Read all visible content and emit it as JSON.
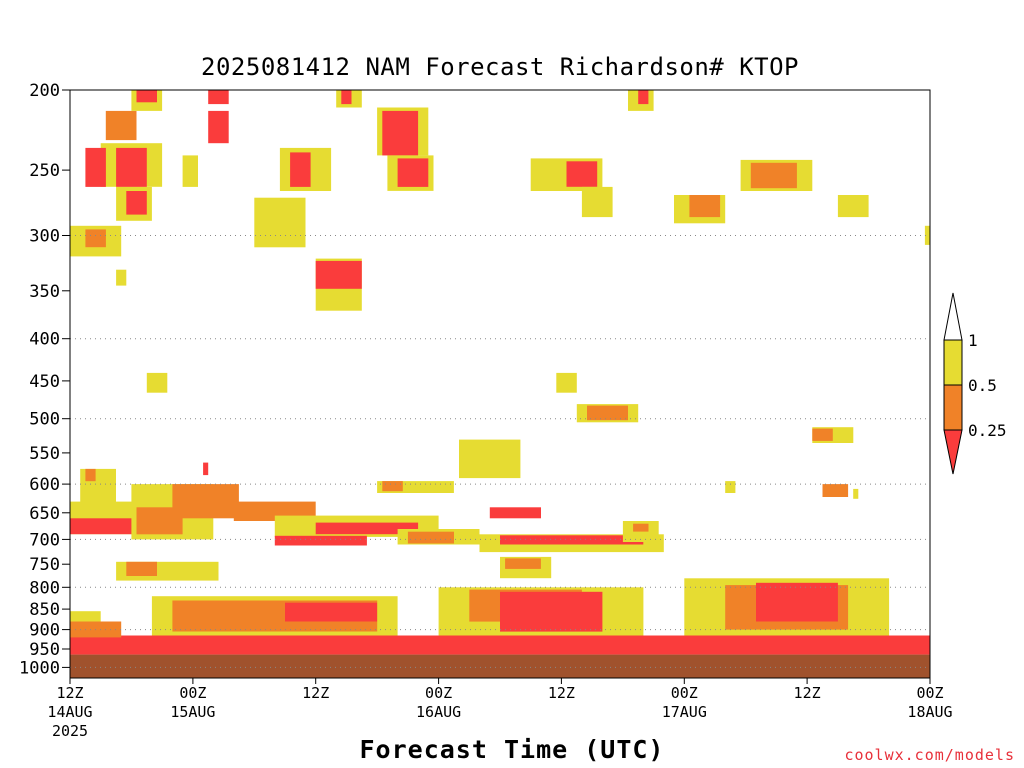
{
  "chart_data": {
    "type": "heatmap",
    "title": "2025081412 NAM Forecast Richardson# KTOP",
    "xlabel": "Forecast Time (UTC)",
    "ylabel": "",
    "credit": "coolwx.com/models",
    "y_scale": "log-pressure (inverted)",
    "ylim": [
      1030,
      200
    ],
    "y_ticks": [
      200,
      250,
      300,
      350,
      400,
      450,
      500,
      550,
      600,
      650,
      700,
      750,
      800,
      850,
      900,
      950,
      1000
    ],
    "grid_levels": [
      300,
      400,
      500,
      600,
      700,
      800,
      900,
      1000
    ],
    "x_range_hours": [
      0,
      84
    ],
    "x_ticks": [
      {
        "hour": 0,
        "line1": "12Z",
        "line2": "14AUG",
        "line3": "2025"
      },
      {
        "hour": 12,
        "line1": "00Z",
        "line2": "15AUG",
        "line3": ""
      },
      {
        "hour": 24,
        "line1": "12Z",
        "line2": "",
        "line3": ""
      },
      {
        "hour": 36,
        "line1": "00Z",
        "line2": "16AUG",
        "line3": ""
      },
      {
        "hour": 48,
        "line1": "12Z",
        "line2": "",
        "line3": ""
      },
      {
        "hour": 60,
        "line1": "00Z",
        "line2": "17AUG",
        "line3": ""
      },
      {
        "hour": 72,
        "line1": "12Z",
        "line2": "",
        "line3": ""
      },
      {
        "hour": 84,
        "line1": "00Z",
        "line2": "18AUG",
        "line3": ""
      }
    ],
    "legend": {
      "placement": "right",
      "bins": [
        {
          "label": "",
          "range": "> 1",
          "color": "#ffffff"
        },
        {
          "label": "1",
          "range": "0.5 - 1",
          "color": "#e6dc32"
        },
        {
          "label": "0.5",
          "range": "0.25 - 0.5",
          "color": "#f08228"
        },
        {
          "label": "0.25",
          "range": "< 0.25",
          "color": "#fa3c3c"
        }
      ]
    },
    "colors": {
      "low": "#fa3c3c",
      "mid": "#f08228",
      "high": "#e6dc32",
      "ground": "#a0522d"
    },
    "ground_top_hpa": 965,
    "regions": [
      {
        "bin": "high",
        "t0": 0,
        "t1": 5,
        "p0": 292,
        "p1": 318
      },
      {
        "bin": "mid",
        "t0": 1.5,
        "t1": 3.5,
        "p0": 295,
        "p1": 310
      },
      {
        "bin": "high",
        "t0": 4.5,
        "t1": 5.5,
        "p0": 330,
        "p1": 345
      },
      {
        "bin": "high",
        "t0": 3,
        "t1": 9,
        "p0": 232,
        "p1": 262
      },
      {
        "bin": "low",
        "t0": 1.5,
        "t1": 3.5,
        "p0": 235,
        "p1": 262
      },
      {
        "bin": "low",
        "t0": 4.5,
        "t1": 7.5,
        "p0": 235,
        "p1": 262
      },
      {
        "bin": "mid",
        "t0": 3.5,
        "t1": 6.5,
        "p0": 212,
        "p1": 230
      },
      {
        "bin": "high",
        "t0": 6,
        "t1": 9,
        "p0": 198,
        "p1": 212
      },
      {
        "bin": "low",
        "t0": 6.5,
        "t1": 8.5,
        "p0": 198,
        "p1": 207
      },
      {
        "bin": "high",
        "t0": 4.5,
        "t1": 8,
        "p0": 262,
        "p1": 288
      },
      {
        "bin": "low",
        "t0": 5.5,
        "t1": 7.5,
        "p0": 265,
        "p1": 283
      },
      {
        "bin": "high",
        "t0": 11,
        "t1": 12.5,
        "p0": 240,
        "p1": 262
      },
      {
        "bin": "low",
        "t0": 13.5,
        "t1": 15.5,
        "p0": 198,
        "p1": 208
      },
      {
        "bin": "low",
        "t0": 13.5,
        "t1": 15.5,
        "p0": 212,
        "p1": 232
      },
      {
        "bin": "high",
        "t0": 18,
        "t1": 23,
        "p0": 270,
        "p1": 310
      },
      {
        "bin": "high",
        "t0": 20.5,
        "t1": 25.5,
        "p0": 235,
        "p1": 265
      },
      {
        "bin": "low",
        "t0": 21.5,
        "t1": 23.5,
        "p0": 238,
        "p1": 262
      },
      {
        "bin": "high",
        "t0": 26,
        "t1": 28.5,
        "p0": 198,
        "p1": 210
      },
      {
        "bin": "low",
        "t0": 26.5,
        "t1": 27.5,
        "p0": 198,
        "p1": 208
      },
      {
        "bin": "high",
        "t0": 24,
        "t1": 28.5,
        "p0": 320,
        "p1": 370
      },
      {
        "bin": "low",
        "t0": 24,
        "t1": 28.5,
        "p0": 322,
        "p1": 348
      },
      {
        "bin": "high",
        "t0": 30,
        "t1": 35,
        "p0": 210,
        "p1": 240
      },
      {
        "bin": "low",
        "t0": 30.5,
        "t1": 34,
        "p0": 212,
        "p1": 240
      },
      {
        "bin": "high",
        "t0": 31,
        "t1": 35.5,
        "p0": 240,
        "p1": 265
      },
      {
        "bin": "low",
        "t0": 32,
        "t1": 35,
        "p0": 242,
        "p1": 262
      },
      {
        "bin": "high",
        "t0": 45,
        "t1": 52,
        "p0": 242,
        "p1": 265
      },
      {
        "bin": "low",
        "t0": 48.5,
        "t1": 51.5,
        "p0": 244,
        "p1": 262
      },
      {
        "bin": "high",
        "t0": 50,
        "t1": 53,
        "p0": 262,
        "p1": 285
      },
      {
        "bin": "high",
        "t0": 54.5,
        "t1": 57,
        "p0": 198,
        "p1": 212
      },
      {
        "bin": "low",
        "t0": 55.5,
        "t1": 56.5,
        "p0": 198,
        "p1": 208
      },
      {
        "bin": "high",
        "t0": 59,
        "t1": 64,
        "p0": 268,
        "p1": 290
      },
      {
        "bin": "mid",
        "t0": 60.5,
        "t1": 63.5,
        "p0": 268,
        "p1": 285
      },
      {
        "bin": "high",
        "t0": 65.5,
        "t1": 72.5,
        "p0": 243,
        "p1": 265
      },
      {
        "bin": "mid",
        "t0": 66.5,
        "t1": 71,
        "p0": 245,
        "p1": 263
      },
      {
        "bin": "high",
        "t0": 75,
        "t1": 78,
        "p0": 268,
        "p1": 285
      },
      {
        "bin": "high",
        "t0": 83.5,
        "t1": 84,
        "p0": 292,
        "p1": 308
      },
      {
        "bin": "high",
        "t0": 7.5,
        "t1": 9.5,
        "p0": 440,
        "p1": 465
      },
      {
        "bin": "high",
        "t0": 47.5,
        "t1": 49.5,
        "p0": 440,
        "p1": 465
      },
      {
        "bin": "high",
        "t0": 49.5,
        "t1": 55.5,
        "p0": 480,
        "p1": 505
      },
      {
        "bin": "mid",
        "t0": 50.5,
        "t1": 54.5,
        "p0": 482,
        "p1": 502
      },
      {
        "bin": "high",
        "t0": 38,
        "t1": 44,
        "p0": 530,
        "p1": 590
      },
      {
        "bin": "high",
        "t0": 72.5,
        "t1": 76.5,
        "p0": 512,
        "p1": 535
      },
      {
        "bin": "mid",
        "t0": 72.5,
        "t1": 74.5,
        "p0": 514,
        "p1": 532
      },
      {
        "bin": "high",
        "t0": 1,
        "t1": 4.5,
        "p0": 575,
        "p1": 640
      },
      {
        "bin": "mid",
        "t0": 1.5,
        "t1": 2.5,
        "p0": 575,
        "p1": 595
      },
      {
        "bin": "high",
        "t0": 0,
        "t1": 6.5,
        "p0": 630,
        "p1": 690
      },
      {
        "bin": "low",
        "t0": 0,
        "t1": 6.5,
        "p0": 660,
        "p1": 690
      },
      {
        "bin": "high",
        "t0": 6,
        "t1": 14,
        "p0": 600,
        "p1": 700
      },
      {
        "bin": "mid",
        "t0": 6.5,
        "t1": 11,
        "p0": 640,
        "p1": 690
      },
      {
        "bin": "mid",
        "t0": 10,
        "t1": 16.5,
        "p0": 600,
        "p1": 660
      },
      {
        "bin": "low",
        "t0": 13,
        "t1": 13.5,
        "p0": 565,
        "p1": 585
      },
      {
        "bin": "mid",
        "t0": 16,
        "t1": 24,
        "p0": 630,
        "p1": 665
      },
      {
        "bin": "high",
        "t0": 20,
        "t1": 36,
        "p0": 655,
        "p1": 695
      },
      {
        "bin": "low",
        "t0": 24,
        "t1": 34,
        "p0": 668,
        "p1": 690
      },
      {
        "bin": "low",
        "t0": 20,
        "t1": 29,
        "p0": 693,
        "p1": 712
      },
      {
        "bin": "high",
        "t0": 30,
        "t1": 37.5,
        "p0": 595,
        "p1": 615
      },
      {
        "bin": "mid",
        "t0": 30.5,
        "t1": 32.5,
        "p0": 595,
        "p1": 612
      },
      {
        "bin": "high",
        "t0": 32,
        "t1": 40,
        "p0": 680,
        "p1": 710
      },
      {
        "bin": "mid",
        "t0": 33,
        "t1": 37.5,
        "p0": 685,
        "p1": 708
      },
      {
        "bin": "low",
        "t0": 41,
        "t1": 46,
        "p0": 640,
        "p1": 660
      },
      {
        "bin": "high",
        "t0": 40,
        "t1": 58,
        "p0": 690,
        "p1": 725
      },
      {
        "bin": "low",
        "t0": 42,
        "t1": 56,
        "p0": 692,
        "p1": 710
      },
      {
        "bin": "high",
        "t0": 54,
        "t1": 57.5,
        "p0": 665,
        "p1": 705
      },
      {
        "bin": "mid",
        "t0": 55,
        "t1": 56.5,
        "p0": 670,
        "p1": 685
      },
      {
        "bin": "high",
        "t0": 4.5,
        "t1": 14.5,
        "p0": 745,
        "p1": 785
      },
      {
        "bin": "mid",
        "t0": 5.5,
        "t1": 8.5,
        "p0": 745,
        "p1": 775
      },
      {
        "bin": "high",
        "t0": 42,
        "t1": 47,
        "p0": 735,
        "p1": 780
      },
      {
        "bin": "mid",
        "t0": 42.5,
        "t1": 46,
        "p0": 738,
        "p1": 760
      },
      {
        "bin": "high",
        "t0": 76.5,
        "t1": 77,
        "p0": 608,
        "p1": 625
      },
      {
        "bin": "mid",
        "t0": 73.5,
        "t1": 76,
        "p0": 600,
        "p1": 622
      },
      {
        "bin": "high",
        "t0": 64,
        "t1": 65,
        "p0": 595,
        "p1": 615
      },
      {
        "bin": "high",
        "t0": 8,
        "t1": 32,
        "p0": 820,
        "p1": 920
      },
      {
        "bin": "mid",
        "t0": 10,
        "t1": 30,
        "p0": 830,
        "p1": 905
      },
      {
        "bin": "low",
        "t0": 21,
        "t1": 30,
        "p0": 835,
        "p1": 880
      },
      {
        "bin": "high",
        "t0": 36,
        "t1": 56,
        "p0": 800,
        "p1": 920
      },
      {
        "bin": "mid",
        "t0": 39,
        "t1": 50,
        "p0": 805,
        "p1": 880
      },
      {
        "bin": "low",
        "t0": 42,
        "t1": 52,
        "p0": 810,
        "p1": 905
      },
      {
        "bin": "high",
        "t0": 60,
        "t1": 80,
        "p0": 780,
        "p1": 925
      },
      {
        "bin": "mid",
        "t0": 64,
        "t1": 76,
        "p0": 795,
        "p1": 900
      },
      {
        "bin": "low",
        "t0": 67,
        "t1": 75,
        "p0": 790,
        "p1": 880
      },
      {
        "bin": "low",
        "t0": 0,
        "t1": 84,
        "p0": 915,
        "p1": 965
      },
      {
        "bin": "mid",
        "t0": 0,
        "t1": 5,
        "p0": 880,
        "p1": 920
      },
      {
        "bin": "high",
        "t0": 0,
        "t1": 3,
        "p0": 855,
        "p1": 880
      }
    ]
  }
}
